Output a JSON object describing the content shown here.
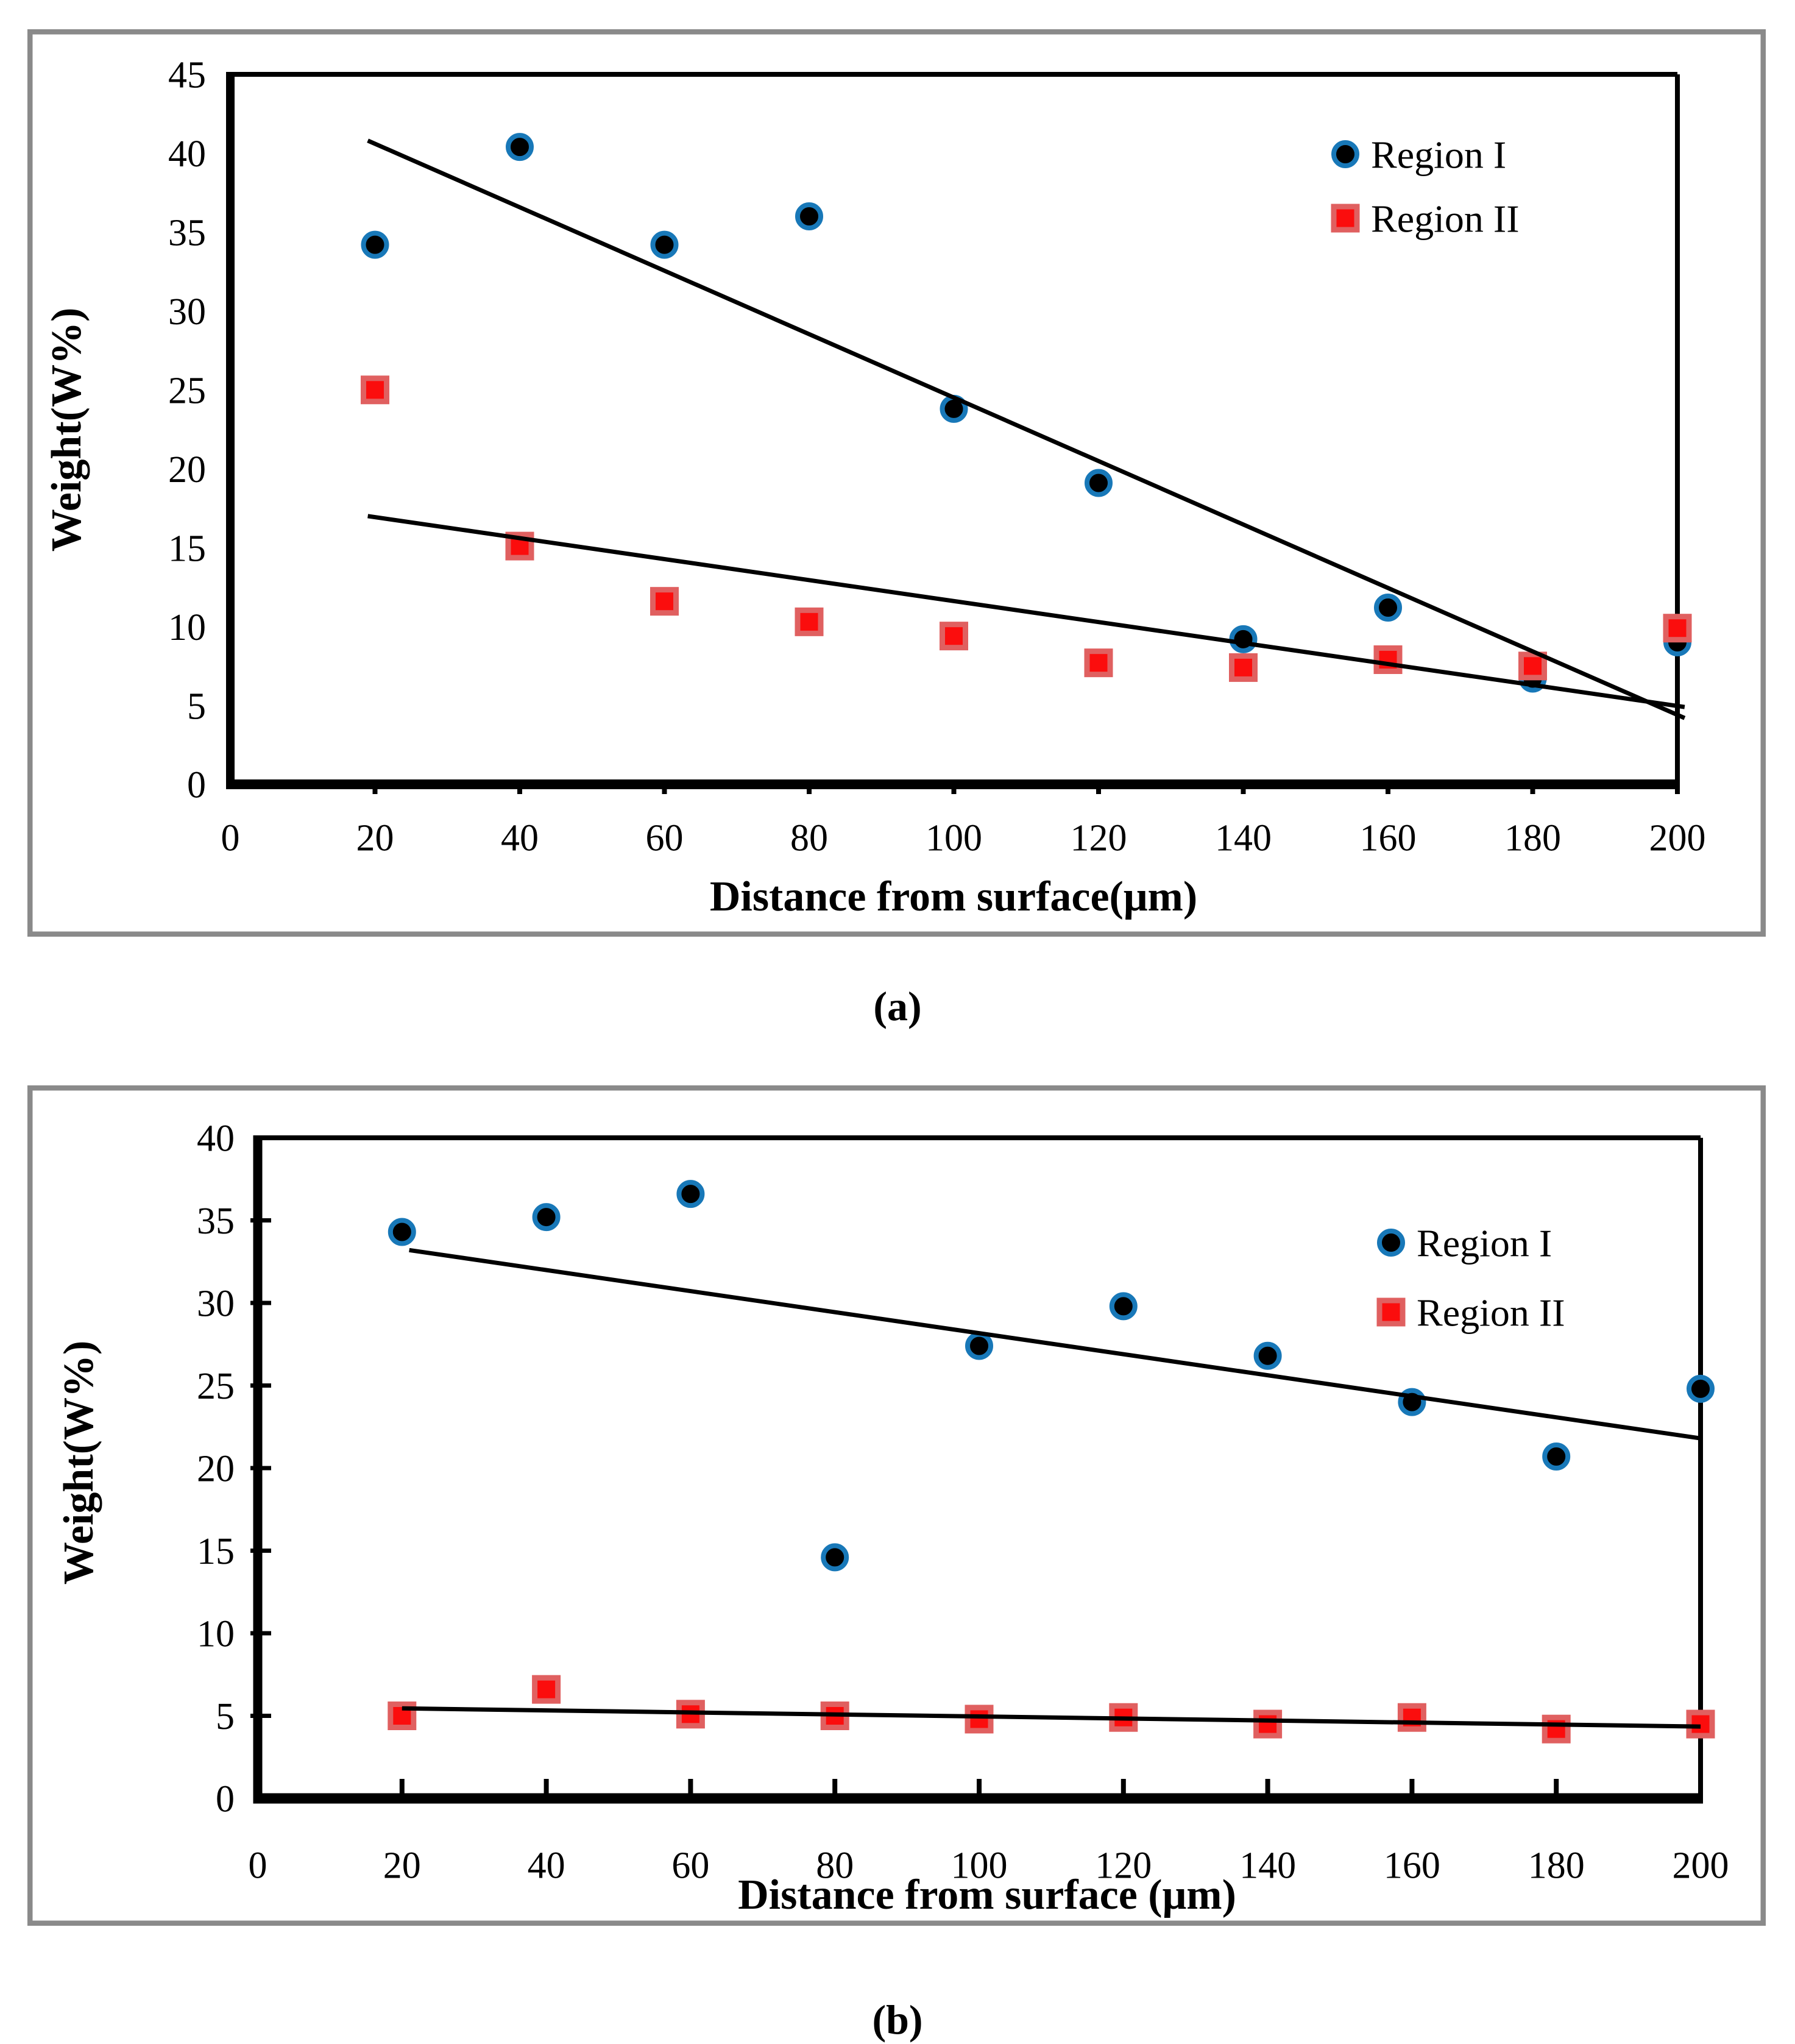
{
  "figure": {
    "caption_a": "(a)",
    "caption_b": "(b)"
  },
  "colors": {
    "region1_ring": "#1878b8",
    "region1_core": "#000000",
    "region2_fill": "#fb0d0d",
    "region2_border": "#e06060",
    "trend_line": "#000000",
    "axis": "#000000",
    "panel_border": "#8a8a8a",
    "text": "#000000",
    "background": "#ffffff"
  },
  "chart_data": [
    {
      "id": "a",
      "type": "scatter",
      "caption": "(a)",
      "xlabel": "Distance from surface(μm)",
      "ylabel": "Weight(W%)",
      "xlim": [
        0,
        200
      ],
      "ylim": [
        0,
        45
      ],
      "xticks": [
        0,
        20,
        40,
        60,
        80,
        100,
        120,
        140,
        160,
        180,
        200
      ],
      "yticks": [
        0,
        5,
        10,
        15,
        20,
        25,
        30,
        35,
        40,
        45
      ],
      "grid": false,
      "legend_position": "top-right",
      "legend": [
        "Region I",
        "Region II"
      ],
      "series": [
        {
          "name": "Region I",
          "marker": "circle",
          "x": [
            20,
            40,
            60,
            80,
            100,
            120,
            140,
            160,
            180,
            200
          ],
          "y": [
            34.2,
            40.4,
            34.2,
            36.0,
            23.8,
            19.1,
            9.2,
            11.2,
            6.7,
            9.0
          ]
        },
        {
          "name": "Region II",
          "marker": "square",
          "x": [
            20,
            40,
            60,
            80,
            100,
            120,
            140,
            160,
            180,
            200
          ],
          "y": [
            25.0,
            15.1,
            11.6,
            10.3,
            9.4,
            7.7,
            7.4,
            7.9,
            7.5,
            9.9
          ]
        }
      ],
      "trend_lines": [
        {
          "series": "Region I",
          "x1": 19,
          "y1": 40.8,
          "x2": 201,
          "y2": 4.2
        },
        {
          "series": "Region II",
          "x1": 19,
          "y1": 17.0,
          "x2": 201,
          "y2": 4.9
        }
      ]
    },
    {
      "id": "b",
      "type": "scatter",
      "caption": "(b)",
      "xlabel": "Distance from surface (μm)",
      "ylabel": "Weight(W%)",
      "xlim": [
        0,
        200
      ],
      "ylim": [
        0,
        40
      ],
      "xticks": [
        0,
        20,
        40,
        60,
        80,
        100,
        120,
        140,
        160,
        180,
        200
      ],
      "yticks": [
        0,
        5,
        10,
        15,
        20,
        25,
        30,
        35,
        40
      ],
      "grid": false,
      "legend_position": "top-right",
      "legend": [
        "Region I",
        "Region II"
      ],
      "series": [
        {
          "name": "Region I",
          "marker": "circle",
          "x": [
            20,
            40,
            60,
            80,
            100,
            120,
            140,
            160,
            180,
            200
          ],
          "y": [
            34.3,
            35.2,
            36.6,
            14.6,
            27.4,
            29.8,
            26.8,
            24.0,
            20.7,
            24.8
          ]
        },
        {
          "name": "Region II",
          "marker": "square",
          "x": [
            20,
            40,
            60,
            80,
            100,
            120,
            140,
            160,
            180,
            200
          ],
          "y": [
            5.0,
            6.6,
            5.1,
            5.0,
            4.8,
            4.9,
            4.5,
            4.9,
            4.2,
            4.5
          ]
        }
      ],
      "trend_lines": [
        {
          "series": "Region I",
          "x1": 21,
          "y1": 33.2,
          "x2": 200,
          "y2": 21.8
        },
        {
          "series": "Region II",
          "x1": 20,
          "y1": 5.45,
          "x2": 200,
          "y2": 4.35
        }
      ]
    }
  ]
}
